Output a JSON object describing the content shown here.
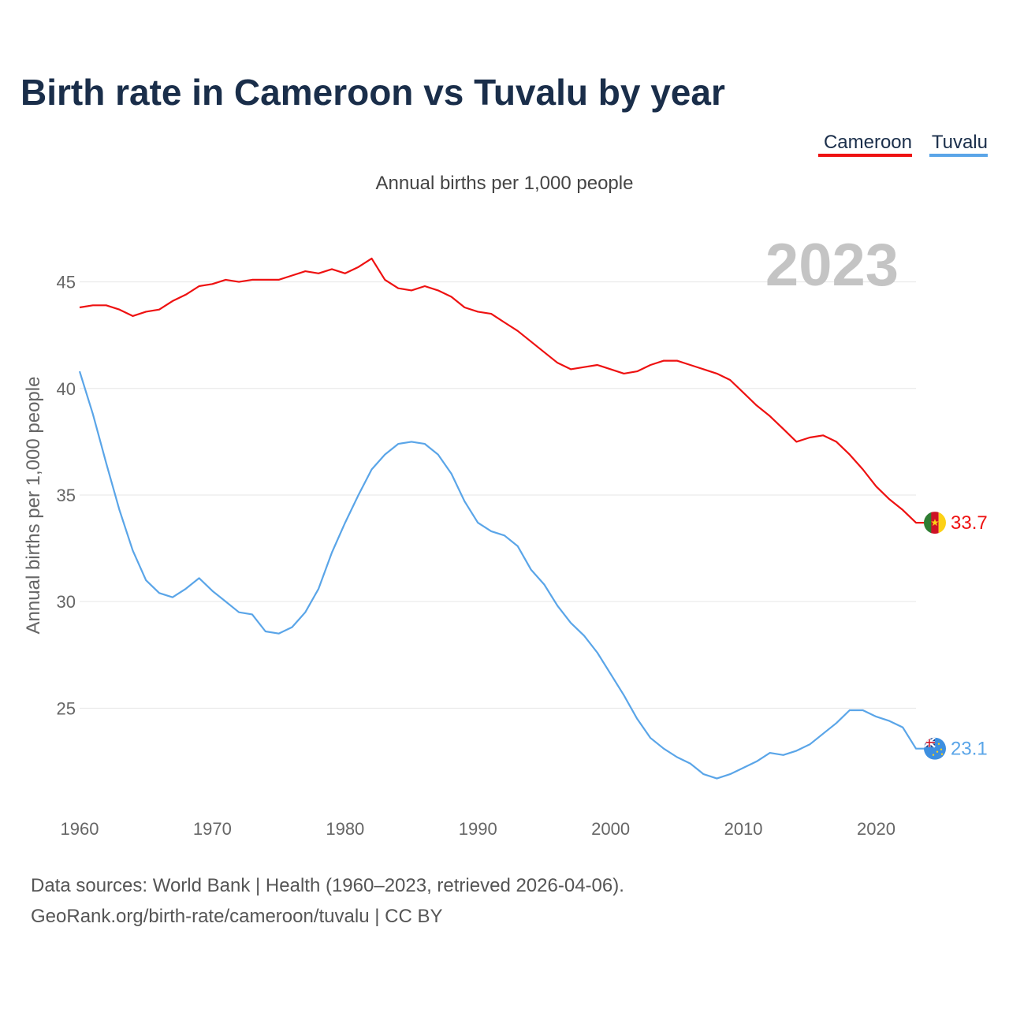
{
  "title": "Birth rate in Cameroon vs Tuvalu by year",
  "legend": [
    {
      "label": "Cameroon",
      "color": "#ee1111"
    },
    {
      "label": "Tuvalu",
      "color": "#5aa5e8"
    }
  ],
  "current_year": "2023",
  "footer": {
    "line1": "Data sources: World Bank | Health (1960–2023, retrieved 2026-04-06).",
    "line2": "GeoRank.org/birth-rate/cameroon/tuvalu | CC BY"
  },
  "chart_data": {
    "type": "line",
    "title": "Birth rate in Cameroon vs Tuvalu by year",
    "subtitle": "Annual births per 1,000 people",
    "xlabel": "",
    "ylabel": "Annual births per 1,000 people",
    "xlim": [
      1960,
      2023
    ],
    "ylim": [
      20.5,
      47.5
    ],
    "x_ticks": [
      1960,
      1970,
      1980,
      1990,
      2000,
      2010,
      2020
    ],
    "y_ticks": [
      25,
      30,
      35,
      40,
      45
    ],
    "grid": true,
    "legend_position": "top-right",
    "x": [
      1960,
      1961,
      1962,
      1963,
      1964,
      1965,
      1966,
      1967,
      1968,
      1969,
      1970,
      1971,
      1972,
      1973,
      1974,
      1975,
      1976,
      1977,
      1978,
      1979,
      1980,
      1981,
      1982,
      1983,
      1984,
      1985,
      1986,
      1987,
      1988,
      1989,
      1990,
      1991,
      1992,
      1993,
      1994,
      1995,
      1996,
      1997,
      1998,
      1999,
      2000,
      2001,
      2002,
      2003,
      2004,
      2005,
      2006,
      2007,
      2008,
      2009,
      2010,
      2011,
      2012,
      2013,
      2014,
      2015,
      2016,
      2017,
      2018,
      2019,
      2020,
      2021,
      2022,
      2023
    ],
    "series": [
      {
        "name": "Cameroon",
        "color": "#ee1111",
        "end_label": "33.7",
        "values": [
          43.8,
          43.9,
          43.9,
          43.7,
          43.4,
          43.6,
          43.7,
          44.1,
          44.4,
          44.8,
          44.9,
          45.1,
          45.0,
          45.1,
          45.1,
          45.1,
          45.3,
          45.5,
          45.4,
          45.6,
          45.4,
          45.7,
          46.1,
          45.1,
          44.7,
          44.6,
          44.8,
          44.6,
          44.3,
          43.8,
          43.6,
          43.5,
          43.1,
          42.7,
          42.2,
          41.7,
          41.2,
          40.9,
          41.0,
          41.1,
          40.9,
          40.7,
          40.8,
          41.1,
          41.3,
          41.3,
          41.1,
          40.9,
          40.7,
          40.4,
          39.8,
          39.2,
          38.7,
          38.1,
          37.5,
          37.7,
          37.8,
          37.5,
          36.9,
          36.2,
          35.4,
          34.8,
          34.3,
          33.7
        ]
      },
      {
        "name": "Tuvalu",
        "color": "#5aa5e8",
        "end_label": "23.1",
        "values": [
          40.8,
          38.8,
          36.5,
          34.3,
          32.4,
          31.0,
          30.4,
          30.2,
          30.6,
          31.1,
          30.5,
          30.0,
          29.5,
          29.4,
          28.6,
          28.5,
          28.8,
          29.5,
          30.6,
          32.3,
          33.7,
          35.0,
          36.2,
          36.9,
          37.4,
          37.5,
          37.4,
          36.9,
          36.0,
          34.7,
          33.7,
          33.3,
          33.1,
          32.6,
          31.5,
          30.8,
          29.8,
          29.0,
          28.4,
          27.6,
          26.6,
          25.6,
          24.5,
          23.6,
          23.1,
          22.7,
          22.4,
          21.9,
          21.7,
          21.9,
          22.2,
          22.5,
          22.9,
          22.8,
          23.0,
          23.3,
          23.8,
          24.3,
          24.9,
          24.9,
          24.6,
          24.4,
          24.1,
          23.1
        ]
      }
    ]
  }
}
